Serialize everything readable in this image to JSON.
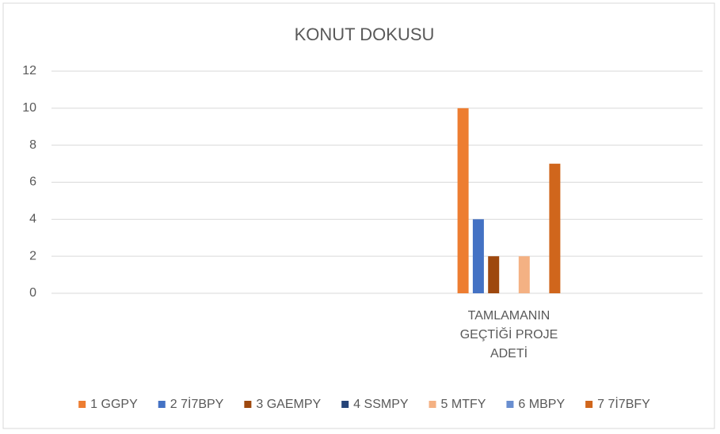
{
  "chart_data": {
    "type": "bar",
    "title": "KONUT DOKUSU",
    "categories": [
      null,
      "TAMLAMANIN GEÇTİĞİ PROJE ADETİ"
    ],
    "series": [
      {
        "name": "1 GGPY",
        "color": "#ed7d31",
        "values": [
          null,
          10
        ]
      },
      {
        "name": "2 7İ7BPY",
        "color": "#4472c4",
        "values": [
          null,
          4
        ]
      },
      {
        "name": "3 GAEMPY",
        "color": "#9e480e",
        "values": [
          null,
          2
        ]
      },
      {
        "name": "4 SSMPY",
        "color": "#264478",
        "values": [
          null,
          null
        ]
      },
      {
        "name": "5 MTFY",
        "color": "#f4b183",
        "values": [
          null,
          2
        ]
      },
      {
        "name": "6 MBPY",
        "color": "#698ed0",
        "values": [
          null,
          null
        ]
      },
      {
        "name": "7 7İ7BFY",
        "color": "#d0661c",
        "values": [
          null,
          7
        ]
      }
    ],
    "ylim": [
      0,
      12
    ],
    "yticks": [
      0,
      2,
      4,
      6,
      8,
      10,
      12
    ],
    "grid": true,
    "legend": "bottom"
  }
}
